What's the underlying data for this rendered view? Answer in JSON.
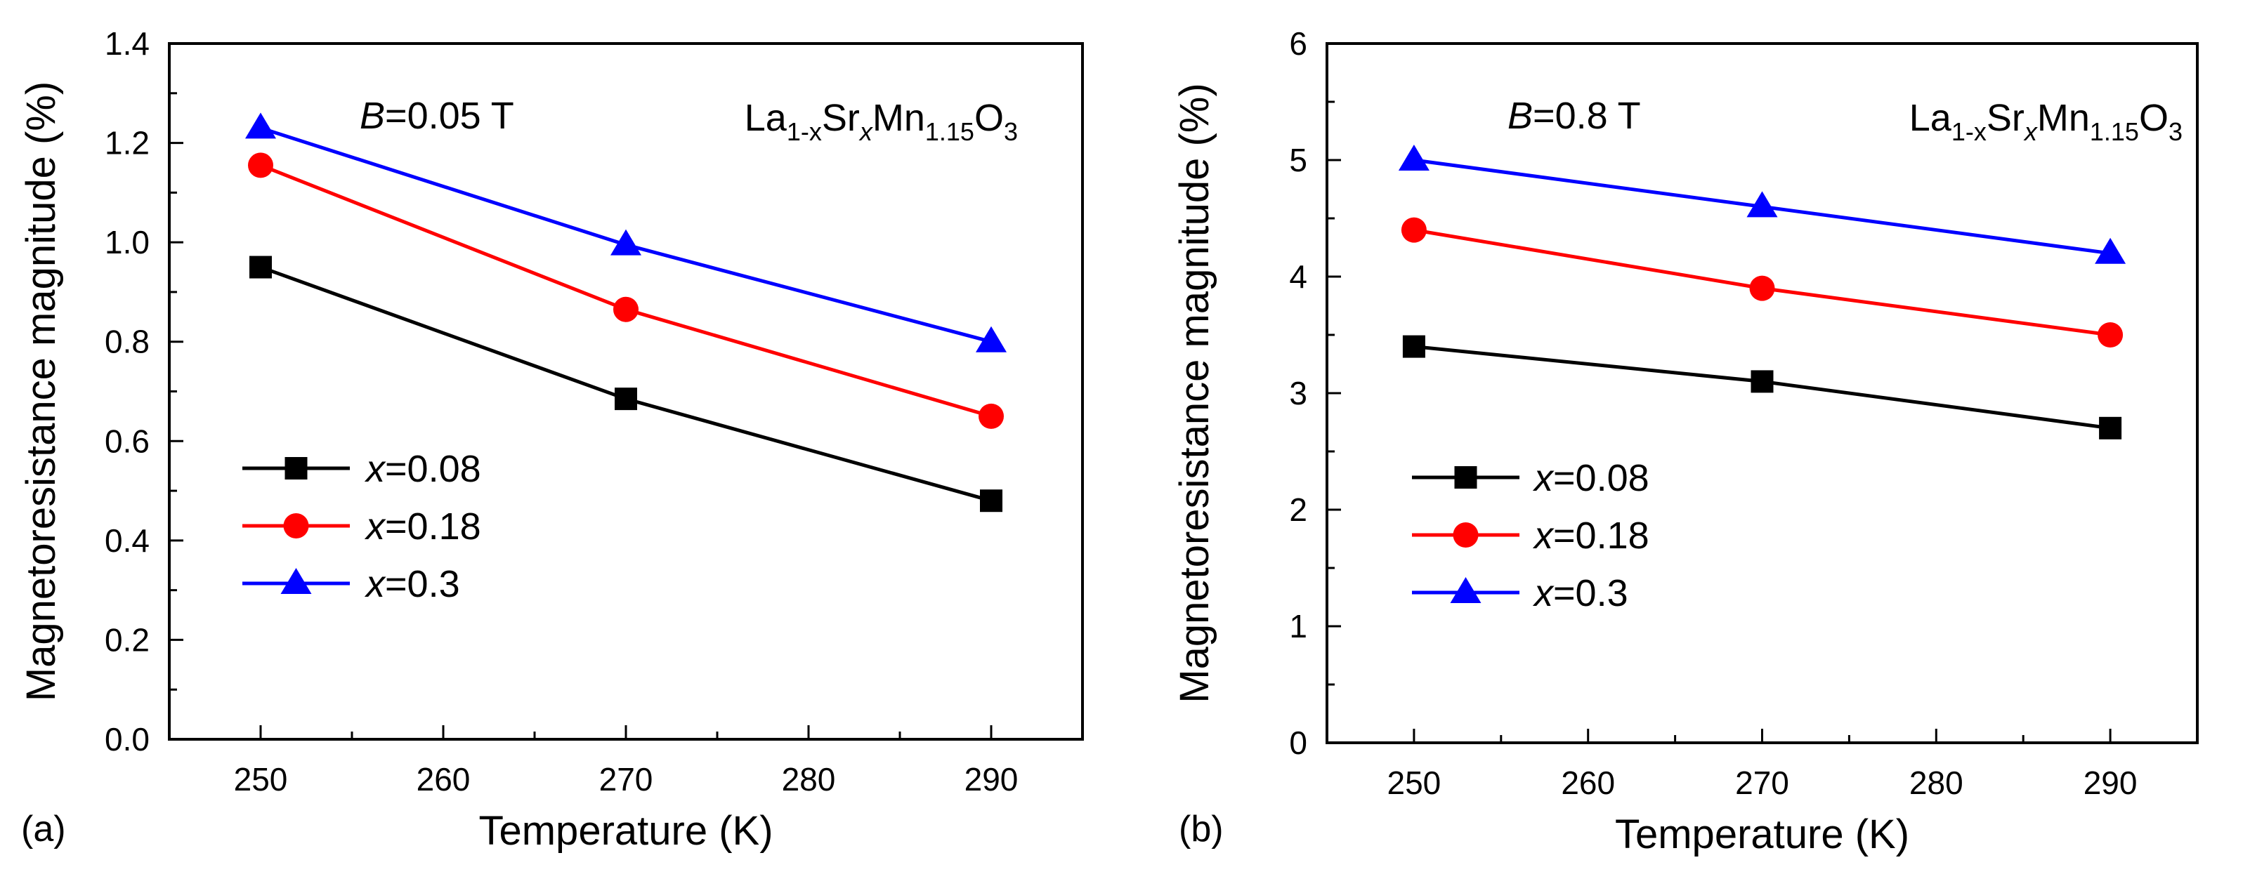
{
  "figure": {
    "description_label": "Magnetoresistance vs temperature, two panels"
  },
  "chart_data": [
    {
      "type": "line",
      "panel_label": "(a)",
      "field_symbol": "B",
      "field_value": "=0.05 T",
      "formula": {
        "base1": "La",
        "sub1": "1-x",
        "base2": "Sr",
        "sub2": "x",
        "base3": "Mn",
        "sub3": "1.15",
        "base4": "O",
        "sub4": "3"
      },
      "xlabel": "Temperature (K)",
      "ylabel": "Magnetoresistance magnitude (%)",
      "xlim": [
        245,
        295
      ],
      "ylim": [
        0,
        1.4
      ],
      "xticks": [
        250,
        260,
        270,
        280,
        290
      ],
      "xtick_labels": [
        "250",
        "260",
        "270",
        "280",
        "290"
      ],
      "yticks": [
        0,
        0.2,
        0.4,
        0.6,
        0.8,
        1.0,
        1.2,
        1.4
      ],
      "ytick_labels": [
        "0.0",
        "0.2",
        "0.4",
        "0.6",
        "0.8",
        "1.0",
        "1.2",
        "1.4"
      ],
      "x": [
        250,
        270,
        290
      ],
      "legend_position": "middle-left",
      "series": [
        {
          "var": "x",
          "name": "=0.08",
          "color": "#000000",
          "marker": "square",
          "values": [
            0.95,
            0.685,
            0.48
          ]
        },
        {
          "var": "x",
          "name": "=0.18",
          "color": "#ff0000",
          "marker": "circle",
          "values": [
            1.155,
            0.865,
            0.65
          ]
        },
        {
          "var": "x",
          "name": "=0.3",
          "color": "#0000ff",
          "marker": "triangle",
          "values": [
            1.23,
            0.995,
            0.8
          ]
        }
      ]
    },
    {
      "type": "line",
      "panel_label": "(b)",
      "field_symbol": "B",
      "field_value": "=0.8 T",
      "formula": {
        "base1": "La",
        "sub1": "1-x",
        "base2": "Sr",
        "sub2": "x",
        "base3": "Mn",
        "sub3": "1.15",
        "base4": "O",
        "sub4": "3"
      },
      "xlabel": "Temperature (K)",
      "ylabel": "Magnetoresistance magnitude (%)",
      "xlim": [
        245,
        295
      ],
      "ylim": [
        0,
        6
      ],
      "xticks": [
        250,
        260,
        270,
        280,
        290
      ],
      "xtick_labels": [
        "250",
        "260",
        "270",
        "280",
        "290"
      ],
      "yticks": [
        0,
        1,
        2,
        3,
        4,
        5,
        6
      ],
      "ytick_labels": [
        "0",
        "1",
        "2",
        "3",
        "4",
        "5",
        "6"
      ],
      "x": [
        250,
        270,
        290
      ],
      "legend_position": "middle-left",
      "series": [
        {
          "var": "x",
          "name": "=0.08",
          "color": "#000000",
          "marker": "square",
          "values": [
            3.4,
            3.1,
            2.7
          ]
        },
        {
          "var": "x",
          "name": "=0.18",
          "color": "#ff0000",
          "marker": "circle",
          "values": [
            4.4,
            3.9,
            3.5
          ]
        },
        {
          "var": "x",
          "name": "=0.3",
          "color": "#0000ff",
          "marker": "triangle",
          "values": [
            5.0,
            4.6,
            4.2
          ]
        }
      ]
    }
  ]
}
